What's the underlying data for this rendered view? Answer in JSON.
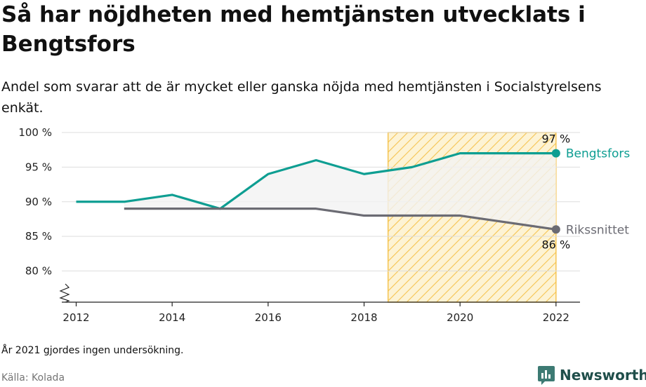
{
  "title": "Så har nöjdheten med hemtjänsten utvecklats i Bengtsfors",
  "subtitle": "Andel som svarar att de är mycket eller ganska nöjda med hemtjänsten i Socialstyrelsens enkät.",
  "note": "År 2021 gjordes ingen undersökning.",
  "source": "Källa: Kolada",
  "brand": "Newsworthy",
  "colors": {
    "bengtsfors": "#0e9e92",
    "riks": "#6b6b73",
    "hatch": "#f5c451",
    "hatch_fill": "#fdf3d4",
    "area": "#f3f3f3",
    "grid": "#dddddd",
    "brand": "#1f4e4a"
  },
  "chart_data": {
    "type": "line",
    "xlim": [
      2011.7,
      2022.5
    ],
    "ylim": [
      75.5,
      100
    ],
    "x_ticks": [
      2012,
      2014,
      2016,
      2018,
      2020,
      2022
    ],
    "x_tick_labels": [
      "2012",
      "2014",
      "2016",
      "2018",
      "2020",
      "2022"
    ],
    "y_ticks": [
      80,
      85,
      90,
      95,
      100
    ],
    "y_tick_labels": [
      "80 %",
      "85 %",
      "90 %",
      "95 %",
      "100 %"
    ],
    "axis_break": true,
    "highlight_range": [
      2018.5,
      2022
    ],
    "series": [
      {
        "name": "Bengtsfors",
        "key": "bengtsfors",
        "x": [
          2012,
          2013,
          2014,
          2015,
          2016,
          2017,
          2018,
          2019,
          2020,
          2022
        ],
        "y": [
          90,
          90,
          91,
          89,
          94,
          96,
          94,
          95,
          97,
          97
        ],
        "end_label": "97 %"
      },
      {
        "name": "Rikssnittet",
        "key": "riks",
        "x": [
          2013,
          2014,
          2015,
          2016,
          2017,
          2018,
          2019,
          2020,
          2022
        ],
        "y": [
          89,
          89,
          89,
          89,
          89,
          88,
          88,
          88,
          86
        ],
        "end_label": "86 %"
      }
    ]
  }
}
